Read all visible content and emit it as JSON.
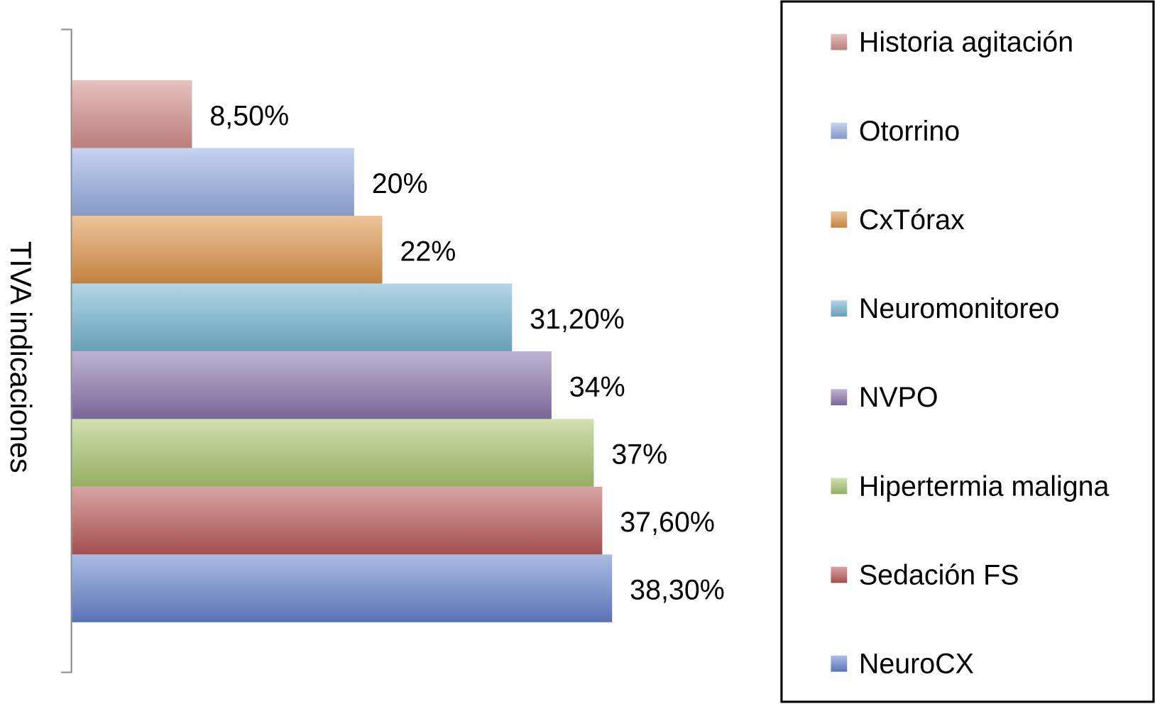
{
  "chart_data": {
    "type": "bar",
    "orientation": "horizontal",
    "y_label": "TIVA indicaciones",
    "xlim": [
      0,
      40
    ],
    "legend": "right",
    "series": [
      {
        "name": "Historia agitación",
        "color": "#d48f8d",
        "values": [
          8.5
        ],
        "value_labels": [
          "8,50%"
        ]
      },
      {
        "name": "Otorrino",
        "color": "#97aee3",
        "values": [
          20
        ],
        "value_labels": [
          "20%"
        ]
      },
      {
        "name": "CxTórax",
        "color": "#dc9447",
        "values": [
          22
        ],
        "value_labels": [
          "22%"
        ]
      },
      {
        "name": "Neuromonitoreo",
        "color": "#74b6d2",
        "values": [
          31.2
        ],
        "value_labels": [
          "31,20%"
        ]
      },
      {
        "name": "NVPO",
        "color": "#8a74ad",
        "values": [
          34
        ],
        "value_labels": [
          "34%"
        ]
      },
      {
        "name": "Hipertermia maligna",
        "color": "#aac670",
        "values": [
          37
        ],
        "value_labels": [
          "37%"
        ]
      },
      {
        "name": "Sedación FS",
        "color": "#b85a57",
        "values": [
          37.6
        ],
        "value_labels": [
          "37,60%"
        ]
      },
      {
        "name": "NeuroCX",
        "color": "#6683cc",
        "values": [
          38.3
        ],
        "value_labels": [
          "38,30%"
        ]
      }
    ]
  }
}
